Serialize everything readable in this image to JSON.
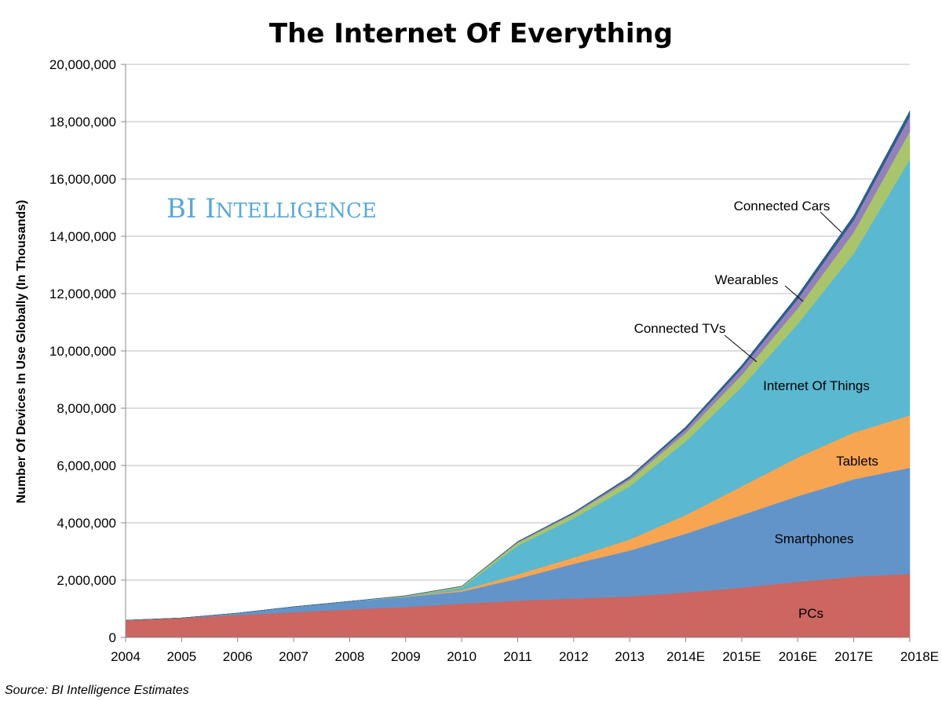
{
  "watermark": {
    "text_big_1": "BI I",
    "text_small": "NTELLIGENCE"
  },
  "source": "Source: BI Intelligence Estimates",
  "colors": {
    "pcs": "#cd6560",
    "smartphones": "#6394c9",
    "tablets": "#f8a552",
    "internet_of_things": "#5ab8d0",
    "connected_tvs": "#a9c46b",
    "wearables": "#9481bc",
    "connected_cars": "#2b5f8a",
    "watermark": "#5aa8d6"
  },
  "chart_data": {
    "type": "area",
    "stacked": true,
    "title": "The Internet Of Everything",
    "xlabel": "",
    "ylabel": "Number Of Devices In Use Globally (In Thousands)",
    "ylim": [
      0,
      20000000
    ],
    "yticks": [
      "0",
      "2,000,000",
      "4,000,000",
      "6,000,000",
      "8,000,000",
      "10,000,000",
      "12,000,000",
      "14,000,000",
      "16,000,000",
      "18,000,000",
      "20,000,000"
    ],
    "grid": true,
    "legend": "none",
    "categories": [
      "2004",
      "2005",
      "2006",
      "2007",
      "2008",
      "2009",
      "2010",
      "2011",
      "2012",
      "2013",
      "2014E",
      "2015E",
      "2016E",
      "2017E",
      "2018E"
    ],
    "series": [
      {
        "name": "PCs",
        "color_key": "pcs",
        "values": [
          600000,
          680000,
          780000,
          880000,
          980000,
          1060000,
          1180000,
          1280000,
          1360000,
          1430000,
          1570000,
          1740000,
          1940000,
          2120000,
          2220000
        ]
      },
      {
        "name": "Smartphones",
        "color_key": "smartphones",
        "values": [
          0,
          0,
          70000,
          190000,
          280000,
          350000,
          420000,
          770000,
          1210000,
          1600000,
          2050000,
          2530000,
          2990000,
          3400000,
          3700000
        ]
      },
      {
        "name": "Tablets",
        "color_key": "tablets",
        "values": [
          0,
          0,
          0,
          0,
          0,
          10000,
          50000,
          150000,
          220000,
          390000,
          650000,
          1000000,
          1350000,
          1630000,
          1830000
        ]
      },
      {
        "name": "Internet Of Things",
        "color_key": "internet_of_things",
        "values": [
          0,
          0,
          0,
          0,
          0,
          0,
          80000,
          1000000,
          1370000,
          1850000,
          2570000,
          3470000,
          4660000,
          6250000,
          8930000
        ]
      },
      {
        "name": "Connected TVs",
        "color_key": "connected_tvs",
        "values": [
          0,
          0,
          0,
          0,
          0,
          30000,
          50000,
          110000,
          150000,
          230000,
          300000,
          420000,
          550000,
          740000,
          980000
        ]
      },
      {
        "name": "Wearables",
        "color_key": "wearables",
        "values": [
          0,
          0,
          0,
          0,
          0,
          0,
          0,
          20000,
          30000,
          70000,
          130000,
          230000,
          320000,
          420000,
          520000
        ]
      },
      {
        "name": "Connected Cars",
        "color_key": "connected_cars",
        "values": [
          0,
          0,
          0,
          0,
          0,
          10000,
          10000,
          20000,
          30000,
          50000,
          80000,
          110000,
          140000,
          170000,
          200000
        ]
      }
    ]
  }
}
